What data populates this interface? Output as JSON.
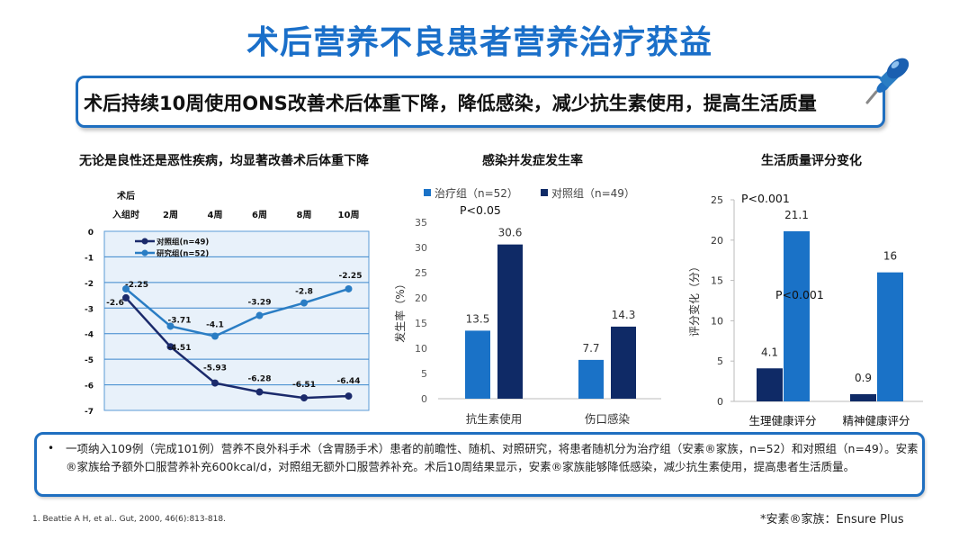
{
  "title": "术后营养不良患者营养治疗获益",
  "subtitle": "术后持续10周使用ONS改善术后体重下降，降低感染，减少抗生素使用，提高生活质量",
  "chart_titles": {
    "weight": "无论是良性还是恶性疾病，均显著改善术后体重下降",
    "infection": "感染并发症发生率",
    "quality": "生活质量评分变化"
  },
  "chart_data": [
    {
      "type": "line",
      "categories": [
        "术后入组时",
        "2周",
        "4周",
        "6周",
        "8周",
        "10周"
      ],
      "category_lines": [
        [
          "术后",
          "入组时"
        ],
        [
          "2周"
        ],
        [
          "4周"
        ],
        [
          "6周"
        ],
        [
          "8周"
        ],
        [
          "10周"
        ]
      ],
      "y_ticks": [
        "0",
        "-1",
        "-2",
        "-3",
        "-4",
        "-5",
        "-6",
        "-7"
      ],
      "ylim": [
        -7,
        0
      ],
      "series": [
        {
          "name": "对照组(n=49)",
          "color": "#1b2a6b",
          "values": [
            -2.6,
            -4.51,
            -5.93,
            -6.28,
            -6.51,
            -6.44
          ]
        },
        {
          "name": "研究组(n=52)",
          "color": "#2a7dc4",
          "values": [
            -2.25,
            -3.71,
            -4.1,
            -3.29,
            -2.8,
            -2.25
          ]
        }
      ],
      "value_labels": {
        "control": [
          "-2.6",
          "-4.51",
          "-5.93",
          "-6.28",
          "-6.51",
          "-6.44"
        ],
        "study": [
          "-2.25",
          "-3.71",
          "-4.1",
          "-3.29",
          "-2.8",
          "-2.25"
        ]
      },
      "grid": true,
      "legend_position": "top-left"
    },
    {
      "type": "bar",
      "categories": [
        "抗生素使用",
        "伤口感染"
      ],
      "ylabel": "发生率（%）",
      "ylim": [
        0,
        35
      ],
      "y_ticks": [
        "0",
        "5",
        "10",
        "15",
        "20",
        "25",
        "30",
        "35"
      ],
      "series": [
        {
          "name": "治疗组（n=52）",
          "color": "#1a72c7",
          "values": [
            13.5,
            7.7
          ]
        },
        {
          "name": "对照组（n=49）",
          "color": "#0f2a66",
          "values": [
            30.6,
            14.3
          ]
        }
      ],
      "value_labels": [
        [
          "13.5",
          "30.6"
        ],
        [
          "7.7",
          "14.3"
        ]
      ],
      "annotation": "P<0.05",
      "legend_position": "top",
      "grid": false
    },
    {
      "type": "bar",
      "categories": [
        "生理健康评分",
        "精神健康评分"
      ],
      "ylabel": "评分变化（分）",
      "ylim": [
        0,
        25
      ],
      "y_ticks": [
        "0",
        "5",
        "10",
        "15",
        "20",
        "25"
      ],
      "series": [
        {
          "name": "对照组",
          "color": "#0f2a66",
          "values": [
            4.1,
            0.9
          ]
        },
        {
          "name": "治疗组",
          "color": "#1a72c7",
          "values": [
            21.1,
            16
          ]
        }
      ],
      "value_labels": [
        [
          "4.1",
          "21.1"
        ],
        [
          "0.9",
          "16"
        ]
      ],
      "annotations": [
        "P<0.001",
        "P<0.001"
      ],
      "grid": false
    }
  ],
  "note": {
    "bullet": "•",
    "text": "一项纳入109例（完成101例）营养不良外科手术（含胃肠手术）患者的前瞻性、随机、对照研究，将患者随机分为治疗组（安素®家族，n=52）和对照组（n=49）。安素®家族给予额外口服营养补充600kcal/d，对照组无额外口服营养补充。术后10周结果显示，安素®家族能够降低感染，减少抗生素使用，提高患者生活质量。"
  },
  "reference": "1.  Beattie A H, et al.. Gut, 2000, 46(6):813-818.",
  "brand_note": "*安素®家族：Ensure Plus"
}
